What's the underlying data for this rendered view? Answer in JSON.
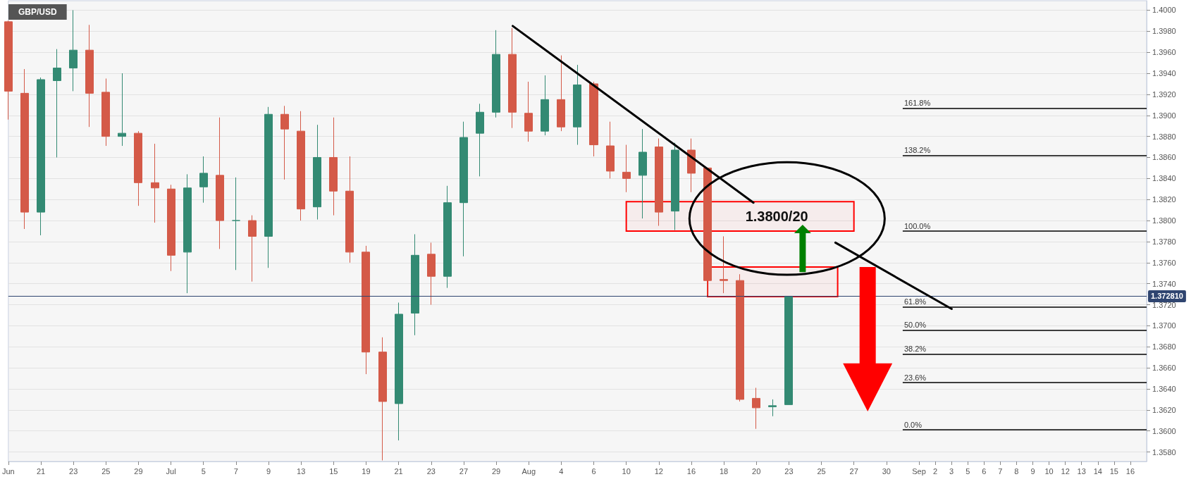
{
  "chart_data": {
    "type": "candlestick",
    "title": "GBP/USD",
    "categories": [
      "Jun",
      null,
      "21",
      null,
      "23",
      null,
      "25",
      null,
      "29",
      null,
      "Jul",
      null,
      "5",
      null,
      "7",
      null,
      "9",
      null,
      "13",
      null,
      "15",
      null,
      "19",
      null,
      "21",
      null,
      "23",
      null,
      "27",
      null,
      "29",
      null,
      "Aug",
      null,
      "4",
      null,
      "6",
      null,
      "10",
      null,
      "12",
      null,
      "16",
      null,
      "18",
      null,
      "20",
      null,
      "23",
      null,
      "25",
      null,
      "27",
      null,
      "30",
      null,
      "Sep",
      "2",
      "3",
      "5",
      "6",
      "7",
      "8",
      "9",
      "10",
      "12",
      "13",
      "14",
      "15",
      "16",
      null
    ],
    "ohlc": [
      [
        1.3989,
        1.399,
        1.3896,
        1.3923
      ],
      [
        1.3921,
        1.3944,
        1.3792,
        1.3808
      ],
      [
        1.3808,
        1.3936,
        1.3786,
        1.3934
      ],
      [
        1.3933,
        1.3963,
        1.386,
        1.3945
      ],
      [
        1.3945,
        1.4,
        1.3923,
        1.3962
      ],
      [
        1.3962,
        1.3986,
        1.3889,
        1.3921
      ],
      [
        1.3922,
        1.3935,
        1.3871,
        1.388
      ],
      [
        1.388,
        1.394,
        1.3871,
        1.3883
      ],
      [
        1.3883,
        1.3885,
        1.3814,
        1.3836
      ],
      [
        1.3836,
        1.3873,
        1.3798,
        1.3831
      ],
      [
        1.383,
        1.3834,
        1.3752,
        1.3767
      ],
      [
        1.377,
        1.3844,
        1.3731,
        1.3831
      ],
      [
        1.3832,
        1.3861,
        1.3817,
        1.3845
      ],
      [
        1.3843,
        1.3898,
        1.3773,
        1.38
      ],
      [
        1.38,
        1.3841,
        1.3753,
        1.38
      ],
      [
        1.38,
        1.3805,
        1.3742,
        1.3785
      ],
      [
        1.3785,
        1.3908,
        1.3755,
        1.3901
      ],
      [
        1.3901,
        1.3909,
        1.3839,
        1.3887
      ],
      [
        1.3885,
        1.3904,
        1.38,
        1.3811
      ],
      [
        1.3813,
        1.3891,
        1.3801,
        1.386
      ],
      [
        1.386,
        1.3898,
        1.3805,
        1.3828
      ],
      [
        1.3828,
        1.3861,
        1.376,
        1.377
      ],
      [
        1.377,
        1.3776,
        1.3654,
        1.3675
      ],
      [
        1.3675,
        1.3689,
        1.3572,
        1.3628
      ],
      [
        1.3626,
        1.3722,
        1.3591,
        1.3711
      ],
      [
        1.3712,
        1.3787,
        1.3691,
        1.3767
      ],
      [
        1.3768,
        1.3779,
        1.372,
        1.3747
      ],
      [
        1.3747,
        1.3833,
        1.3736,
        1.3817
      ],
      [
        1.3817,
        1.3894,
        1.3766,
        1.3879
      ],
      [
        1.3883,
        1.3911,
        1.3842,
        1.3903
      ],
      [
        1.3903,
        1.3981,
        1.3898,
        1.3958
      ],
      [
        1.3958,
        1.3983,
        1.3888,
        1.3903
      ],
      [
        1.3902,
        1.3932,
        1.3875,
        1.3885
      ],
      [
        1.3885,
        1.3938,
        1.3881,
        1.3915
      ],
      [
        1.3915,
        1.3957,
        1.3885,
        1.3889
      ],
      [
        1.3889,
        1.3948,
        1.3872,
        1.3929
      ],
      [
        1.393,
        1.3932,
        1.3861,
        1.3872
      ],
      [
        1.3871,
        1.3894,
        1.384,
        1.3847
      ],
      [
        1.3846,
        1.3872,
        1.3827,
        1.384
      ],
      [
        1.3843,
        1.3887,
        1.3802,
        1.3865
      ],
      [
        1.387,
        1.3878,
        1.3795,
        1.3808
      ],
      [
        1.3809,
        1.3874,
        1.3791,
        1.3867
      ],
      [
        1.3867,
        1.3878,
        1.3827,
        1.3845
      ],
      [
        1.385,
        1.385,
        1.3729,
        1.3743
      ],
      [
        1.3744,
        1.3785,
        1.3731,
        1.3743
      ],
      [
        1.3743,
        1.3749,
        1.3628,
        1.363
      ],
      [
        1.3631,
        1.3641,
        1.3602,
        1.3622
      ],
      [
        1.3623,
        1.363,
        1.3614,
        1.3624
      ],
      [
        1.3625,
        1.37281,
        1.3625,
        1.37281
      ],
      null,
      null,
      null,
      null,
      null,
      null,
      null,
      null,
      null,
      null,
      null,
      null,
      null,
      null,
      null,
      null,
      null,
      null,
      null,
      null,
      null,
      null
    ],
    "ylim": [
      1.3571,
      1.4009
    ],
    "yticks": [
      {
        "value": 1.358,
        "label": "1.3580"
      },
      {
        "value": 1.36,
        "label": "1.3600"
      },
      {
        "value": 1.362,
        "label": "1.3620"
      },
      {
        "value": 1.364,
        "label": "1.3640"
      },
      {
        "value": 1.366,
        "label": "1.3660"
      },
      {
        "value": 1.368,
        "label": "1.3680"
      },
      {
        "value": 1.37,
        "label": "1.3700"
      },
      {
        "value": 1.372,
        "label": "1.3720"
      },
      {
        "value": 1.374,
        "label": "1.3740"
      },
      {
        "value": 1.376,
        "label": "1.3760"
      },
      {
        "value": 1.378,
        "label": "1.3780"
      },
      {
        "value": 1.38,
        "label": "1.3800"
      },
      {
        "value": 1.382,
        "label": "1.3820"
      },
      {
        "value": 1.384,
        "label": "1.3840"
      },
      {
        "value": 1.386,
        "label": "1.3860"
      },
      {
        "value": 1.388,
        "label": "1.3880"
      },
      {
        "value": 1.39,
        "label": "1.3900"
      },
      {
        "value": 1.392,
        "label": "1.3920"
      },
      {
        "value": 1.394,
        "label": "1.3940"
      },
      {
        "value": 1.396,
        "label": "1.3960"
      },
      {
        "value": 1.398,
        "label": "1.3980"
      },
      {
        "value": 1.4,
        "label": "1.4000"
      }
    ],
    "ref_lines": [
      {
        "axis": "y",
        "value": 1.37281,
        "label": "1.372810",
        "color": "#2f4570"
      },
      {
        "axis": "y",
        "value": 1.3907,
        "color": "#000000"
      },
      {
        "axis": "y",
        "value": 1.3862,
        "color": "#000000"
      },
      {
        "axis": "y",
        "value": 1.379,
        "color": "#000000"
      },
      {
        "axis": "y",
        "value": 1.3718,
        "color": "#000000"
      },
      {
        "axis": "y",
        "value": 1.3696,
        "color": "#000000"
      },
      {
        "axis": "y",
        "value": 1.3673,
        "color": "#000000"
      },
      {
        "axis": "y",
        "value": 1.3646,
        "color": "#000000"
      },
      {
        "axis": "y",
        "value": 1.3601,
        "color": "#000000"
      }
    ],
    "annotations": [
      "161.8%",
      "138.2%",
      "100.0%",
      "61.8%",
      "50.0%",
      "38.2%",
      "23.6%",
      "0.0%"
    ],
    "bands": [
      {
        "axis": "y",
        "from": 1.379,
        "to": 1.3818,
        "label": "1.3800/20",
        "color": "#ff0000"
      },
      {
        "axis": "y",
        "from": 1.37277,
        "to": 1.37559,
        "color": "#ff0000"
      }
    ],
    "grid": "y"
  }
}
